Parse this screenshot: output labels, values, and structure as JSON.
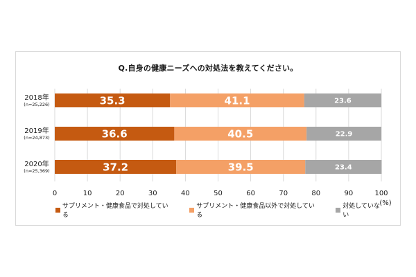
{
  "chart_data": {
    "type": "bar",
    "orientation": "horizontal",
    "stacked": true,
    "title": "Q.自身の健康ニーズへの対処法を教えてください。",
    "categories": [
      "2018年",
      "2019年",
      "2020年"
    ],
    "category_sublabels": [
      "(n=25,226)",
      "(n=24,873)",
      "(n=25,369)"
    ],
    "series": [
      {
        "name": "サプリメント・健康食品で対処している",
        "values": [
          35.3,
          36.6,
          37.2
        ],
        "color": "#c55a11"
      },
      {
        "name": "サプリメント・健康食品以外で対処している",
        "values": [
          41.1,
          40.5,
          39.5
        ],
        "color": "#f4a066"
      },
      {
        "name": "対処していない",
        "values": [
          23.6,
          22.9,
          23.4
        ],
        "color": "#a6a6a6"
      }
    ],
    "xlim": [
      0,
      100
    ],
    "xticks": [
      0,
      10,
      20,
      30,
      40,
      50,
      60,
      70,
      80,
      90,
      100
    ],
    "xunit": "(%)",
    "grid": true,
    "legend_position": "bottom"
  }
}
